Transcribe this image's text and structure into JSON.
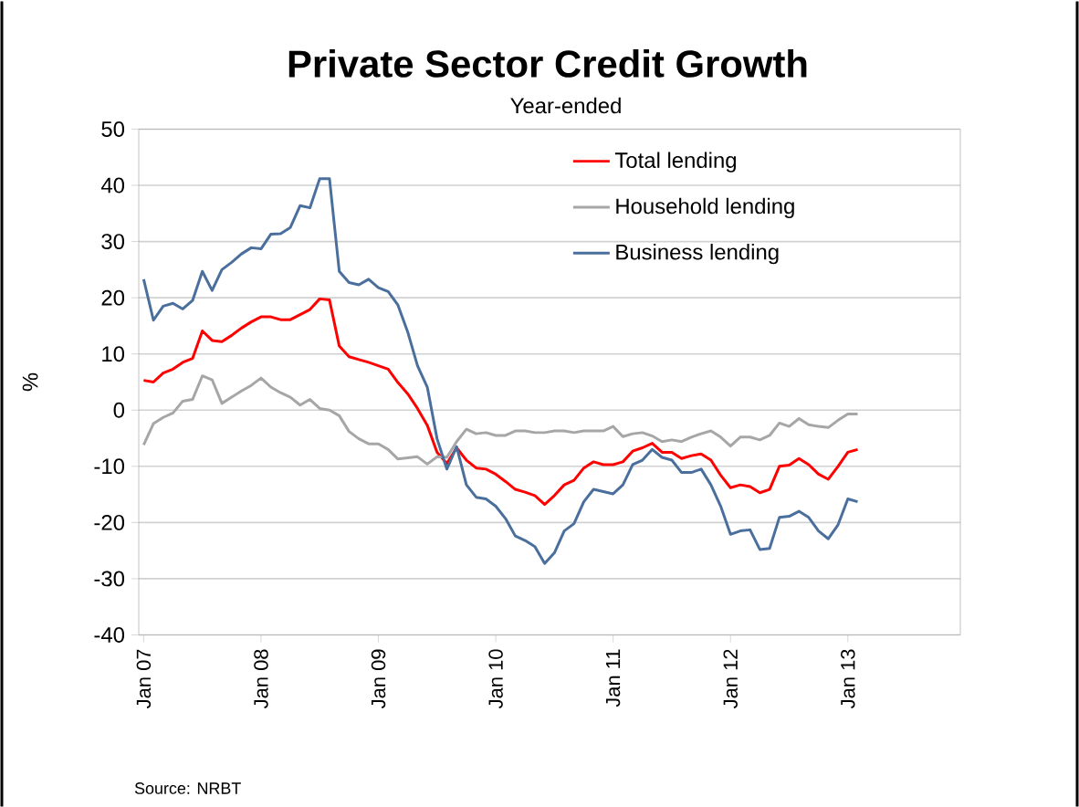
{
  "chart_data": {
    "type": "line",
    "title": "Private Sector Credit Growth",
    "subtitle": "Year-ended",
    "ylabel": "%",
    "annotations": [
      "Source: NRBT"
    ],
    "x": [
      "2007-01",
      "2007-02",
      "2007-03",
      "2007-04",
      "2007-05",
      "2007-06",
      "2007-07",
      "2007-08",
      "2007-09",
      "2007-10",
      "2007-11",
      "2007-12",
      "2008-01",
      "2008-02",
      "2008-03",
      "2008-04",
      "2008-05",
      "2008-06",
      "2008-07",
      "2008-08",
      "2008-09",
      "2008-10",
      "2008-11",
      "2008-12",
      "2009-01",
      "2009-02",
      "2009-03",
      "2009-04",
      "2009-05",
      "2009-06",
      "2009-07",
      "2009-08",
      "2009-09",
      "2009-10",
      "2009-11",
      "2009-12",
      "2010-01",
      "2010-02",
      "2010-03",
      "2010-04",
      "2010-05",
      "2010-06",
      "2010-07",
      "2010-08",
      "2010-09",
      "2010-10",
      "2010-11",
      "2010-12",
      "2011-01",
      "2011-02",
      "2011-03",
      "2011-04",
      "2011-05",
      "2011-06",
      "2011-07",
      "2011-08",
      "2011-09",
      "2011-10",
      "2011-11",
      "2011-12",
      "2012-01",
      "2012-02",
      "2012-03",
      "2012-04",
      "2012-05",
      "2012-06",
      "2012-07",
      "2012-08",
      "2012-09",
      "2012-10",
      "2012-11",
      "2012-12",
      "2013-01",
      "2013-02"
    ],
    "series": [
      {
        "name": "Total lending",
        "color": "#ff0000",
        "values": [
          5.3,
          5.0,
          6.6,
          7.3,
          8.5,
          9.2,
          14.1,
          12.4,
          12.2,
          13.3,
          14.6,
          15.7,
          16.6,
          16.6,
          16.1,
          16.1,
          17.0,
          17.9,
          19.8,
          19.6,
          11.4,
          9.5,
          9.0,
          8.5,
          7.9,
          7.3,
          4.9,
          2.9,
          0.3,
          -2.7,
          -7.5,
          -9.5,
          -6.7,
          -8.9,
          -10.3,
          -10.5,
          -11.4,
          -12.7,
          -14.1,
          -14.6,
          -15.2,
          -16.8,
          -15.2,
          -13.3,
          -12.5,
          -10.3,
          -9.2,
          -9.7,
          -9.7,
          -9.2,
          -7.3,
          -6.7,
          -5.9,
          -7.5,
          -7.5,
          -8.6,
          -8.1,
          -7.8,
          -8.9,
          -11.6,
          -13.8,
          -13.3,
          -13.6,
          -14.7,
          -14.1,
          -10.0,
          -9.8,
          -8.6,
          -9.7,
          -11.4,
          -12.3,
          -10.0,
          -7.5,
          -7.0
        ]
      },
      {
        "name": "Household lending",
        "color": "#a6a6a6",
        "values": [
          -6.2,
          -2.4,
          -1.3,
          -0.5,
          1.6,
          1.9,
          6.1,
          5.4,
          1.2,
          2.3,
          3.4,
          4.4,
          5.7,
          4.1,
          3.1,
          2.3,
          0.9,
          1.9,
          0.3,
          0.0,
          -1.0,
          -3.8,
          -5.1,
          -6.0,
          -6.0,
          -7.0,
          -8.7,
          -8.5,
          -8.3,
          -9.6,
          -8.3,
          -8.4,
          -5.6,
          -3.4,
          -4.2,
          -4.0,
          -4.5,
          -4.5,
          -3.7,
          -3.7,
          -4.0,
          -4.0,
          -3.7,
          -3.7,
          -4.0,
          -3.7,
          -3.7,
          -3.7,
          -2.9,
          -4.7,
          -4.2,
          -4.0,
          -4.6,
          -5.6,
          -5.3,
          -5.6,
          -4.8,
          -4.2,
          -3.7,
          -4.8,
          -6.4,
          -4.8,
          -4.8,
          -5.3,
          -4.5,
          -2.3,
          -2.9,
          -1.5,
          -2.6,
          -2.9,
          -3.1,
          -1.8,
          -0.7,
          -0.7
        ]
      },
      {
        "name": "Business lending",
        "color": "#4a6f9c",
        "values": [
          23.3,
          16.0,
          18.5,
          19.0,
          18.0,
          19.5,
          24.7,
          21.3,
          25.0,
          26.3,
          27.8,
          28.9,
          28.7,
          31.3,
          31.4,
          32.5,
          36.4,
          36.0,
          41.2,
          41.2,
          24.7,
          22.7,
          22.3,
          23.3,
          21.8,
          21.1,
          18.7,
          13.9,
          7.9,
          4.1,
          -5.1,
          -10.5,
          -6.5,
          -13.3,
          -15.5,
          -15.8,
          -17.1,
          -19.3,
          -22.4,
          -23.2,
          -24.3,
          -27.3,
          -25.4,
          -21.5,
          -20.2,
          -16.3,
          -14.1,
          -14.5,
          -14.9,
          -13.3,
          -9.7,
          -8.9,
          -7.0,
          -8.4,
          -8.9,
          -11.1,
          -11.1,
          -10.5,
          -13.3,
          -17.1,
          -22.1,
          -21.5,
          -21.3,
          -24.8,
          -24.6,
          -19.1,
          -18.9,
          -18.0,
          -19.1,
          -21.5,
          -22.9,
          -20.4,
          -15.8,
          -16.3
        ]
      }
    ],
    "xlim": [
      "2006-12-16",
      "2013-12-16"
    ],
    "xticks": [
      {
        "value": "2007-01",
        "label": "Jan 07"
      },
      {
        "value": "2008-01",
        "label": "Jan 08"
      },
      {
        "value": "2009-01",
        "label": "Jan 09"
      },
      {
        "value": "2010-01",
        "label": "Jan 10"
      },
      {
        "value": "2011-01",
        "label": "Jan 11"
      },
      {
        "value": "2012-01",
        "label": "Jan 12"
      },
      {
        "value": "2013-01",
        "label": "Jan 13"
      }
    ],
    "ylim": [
      -40,
      50
    ],
    "yticks": [
      -40,
      -30,
      -20,
      -10,
      0,
      10,
      20,
      30,
      40,
      50
    ],
    "grid": "y",
    "legend": "top right",
    "marker": "none",
    "line_style": "solid"
  }
}
